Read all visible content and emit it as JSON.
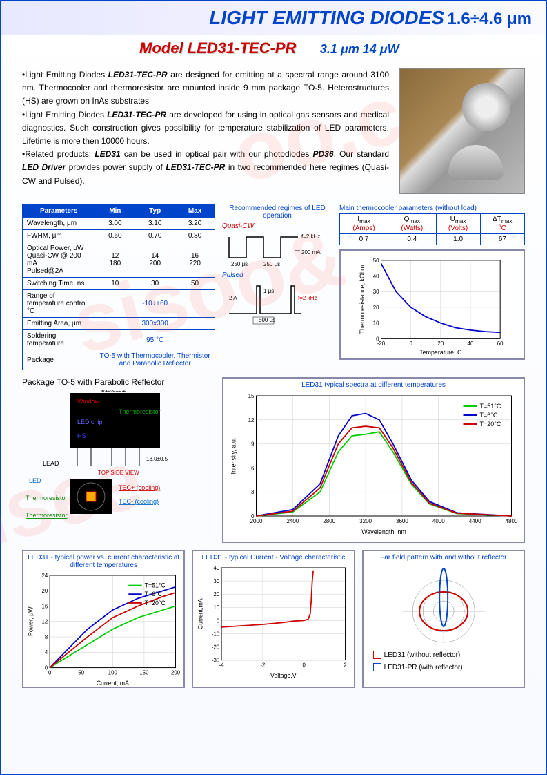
{
  "header": {
    "title": "LIGHT EMITTING DIODES",
    "spec": "1.6÷4.6 μm"
  },
  "subtitle": {
    "model": "Model  LED31-TEC-PR",
    "spec": "3.1 μm  14 μW"
  },
  "description": {
    "p1a": "•Light Emitting Diodes ",
    "p1b": "LED31-TEC-PR",
    "p1c": " are designed for emitting at a spectral range around 3100 nm. Thermocooler and thermoresistor are mounted inside 9 mm package TO-5. Heterostructures (HS) are grown on InAs substrates",
    "p2a": "•Light Emitting Diodes ",
    "p2b": "LED31-TEC-PR",
    "p2c": " are developed for using in optical gas sensors and medical diagnostics. Such construction gives possibility for temperature stabilization of LED parameters.  Lifetime is more then 10000 hours.",
    "p3a": "•Related products: ",
    "p3b": "LED31",
    "p3c": " can be used in optical pair with our photodiodes ",
    "p3d": "PD36",
    "p3e": ". Our standard ",
    "p3f": "LED  Driver",
    "p3g": "  provides power supply of ",
    "p3h": "LED31-TEC-PR",
    "p3i": " in two recommended here regimes (Quasi-CW and Pulsed)."
  },
  "param_table": {
    "headers": [
      "Parameters",
      "Min",
      "Typ",
      "Max"
    ],
    "rows": [
      {
        "label": "Wavelength, μm",
        "min": "3.00",
        "typ": "3.10",
        "max": "3.20"
      },
      {
        "label": "FWHM, μm",
        "min": "0.60",
        "typ": "0.70",
        "max": "0.80"
      },
      {
        "label": "Optical Power, μW\nQuasi-CW @ 200 mA\nPulsed@2A",
        "min": "12\n180",
        "typ": "14\n200",
        "max": "16\n220"
      },
      {
        "label": "Switching Time, ns",
        "min": "10",
        "typ": "30",
        "max": "50"
      },
      {
        "label": "Range of temperature control  °C",
        "full": "-10÷+60"
      },
      {
        "label": "Emitting Area, μm",
        "full": "300x300"
      },
      {
        "label": "Soldering temperature",
        "full": "95 °C"
      },
      {
        "label": "Package",
        "full": "TO-5 with Thermocooler, Thermistor and Parabolic Reflector"
      }
    ]
  },
  "timing": {
    "title": "Recommended regimes of LED operation",
    "quasi_label": "Quasi-CW",
    "pulsed_label": "Pulsed",
    "f_label": "f=2 kHz",
    "amp1": "200 mA",
    "t1": "250 μs",
    "t2": "250 μs",
    "amp2": "2 A",
    "t3": "500 μs",
    "t4": "1 μs",
    "f2": "f=2 kHz"
  },
  "tec": {
    "title": "Main thermocooler parameters (without load)",
    "headers": [
      {
        "sym": "I",
        "sub": "max",
        "unit": "(Amps)"
      },
      {
        "sym": "Q",
        "sub": "max",
        "unit": "(Watts)"
      },
      {
        "sym": "U",
        "sub": "max",
        "unit": "(Volts)"
      },
      {
        "sym": "ΔT",
        "sub": "max",
        "unit": "°C"
      }
    ],
    "values": [
      "0.7",
      "0.4",
      "1.0",
      "67"
    ]
  },
  "therm_chart": {
    "ylabel": "Thermoresistance, kOhm",
    "xlabel": "Temperature, C",
    "xlim": [
      -20,
      60
    ],
    "ylim": [
      0,
      50
    ],
    "xticks": [
      -20,
      0,
      20,
      40,
      60
    ],
    "yticks": [
      0,
      10,
      20,
      30,
      40,
      50
    ],
    "data": [
      [
        -20,
        48
      ],
      [
        -10,
        30
      ],
      [
        0,
        20
      ],
      [
        10,
        14
      ],
      [
        20,
        10
      ],
      [
        30,
        7
      ],
      [
        40,
        5.5
      ],
      [
        50,
        4.5
      ],
      [
        60,
        4
      ]
    ],
    "color": "#0000cc"
  },
  "pkg": {
    "title": "Package TO-5 with Parabolic Reflector",
    "labels": {
      "window": "Window",
      "thermoresistor": "Thermoresistor",
      "led_chip": "LED chip",
      "hs": "HS",
      "lead": "LEAD",
      "led": "LED",
      "tecp": "TEC+ (cooling)",
      "tecn": "TEC- (cooling)",
      "top": "TOP SIDE VIEW",
      "dim1": "ø15.8±0.2",
      "dim2": "13.0±0.5"
    }
  },
  "spectra": {
    "title": "LED31 typical spectra at different temperatures",
    "xlabel": "Wavelength, nm",
    "ylabel": "Intensity, a.u.",
    "xlim": [
      2000,
      4800
    ],
    "ylim": [
      0,
      15
    ],
    "xticks": [
      2000,
      2400,
      2800,
      3200,
      3600,
      4000,
      4400,
      4800
    ],
    "yticks": [
      0,
      3,
      6,
      9,
      12,
      15
    ],
    "series": [
      {
        "label": "T=51°C",
        "color": "#00cc00",
        "data": [
          [
            2000,
            0
          ],
          [
            2400,
            0.5
          ],
          [
            2700,
            3
          ],
          [
            2900,
            8
          ],
          [
            3050,
            10
          ],
          [
            3200,
            10.2
          ],
          [
            3350,
            10.5
          ],
          [
            3500,
            8
          ],
          [
            3700,
            4
          ],
          [
            3900,
            1.5
          ],
          [
            4200,
            0.3
          ],
          [
            4800,
            0
          ]
        ]
      },
      {
        "label": "T=6°C",
        "color": "#0000cc",
        "data": [
          [
            2000,
            0
          ],
          [
            2400,
            0.8
          ],
          [
            2700,
            4
          ],
          [
            2900,
            10
          ],
          [
            3050,
            12.5
          ],
          [
            3200,
            12.8
          ],
          [
            3350,
            12
          ],
          [
            3500,
            9
          ],
          [
            3700,
            4.5
          ],
          [
            3900,
            1.8
          ],
          [
            4200,
            0.4
          ],
          [
            4800,
            0
          ]
        ]
      },
      {
        "label": "T=20°C",
        "color": "#cc0000",
        "data": [
          [
            2000,
            0
          ],
          [
            2400,
            0.6
          ],
          [
            2700,
            3.5
          ],
          [
            2900,
            9
          ],
          [
            3050,
            11
          ],
          [
            3200,
            11.2
          ],
          [
            3350,
            11
          ],
          [
            3500,
            8.5
          ],
          [
            3700,
            4.2
          ],
          [
            3900,
            1.6
          ],
          [
            4200,
            0.35
          ],
          [
            4800,
            0
          ]
        ]
      }
    ]
  },
  "power_chart": {
    "title": "LED31 - typical power vs. current characteristic at different temperatures",
    "xlabel": "Current, mA",
    "ylabel": "Power, μW",
    "xlim": [
      0,
      200
    ],
    "ylim": [
      0,
      24
    ],
    "xticks": [
      0,
      50,
      100,
      150,
      200
    ],
    "yticks": [
      0,
      4,
      8,
      12,
      16,
      20,
      24
    ],
    "series": [
      {
        "label": "T=51°C",
        "color": "#00cc00",
        "data": [
          [
            0,
            0
          ],
          [
            30,
            3
          ],
          [
            60,
            6
          ],
          [
            100,
            10
          ],
          [
            140,
            13
          ],
          [
            180,
            15
          ],
          [
            200,
            16
          ]
        ]
      },
      {
        "label": "T=6°C",
        "color": "#0000cc",
        "data": [
          [
            0,
            0
          ],
          [
            30,
            5
          ],
          [
            60,
            10
          ],
          [
            100,
            15
          ],
          [
            140,
            18
          ],
          [
            180,
            20
          ],
          [
            200,
            21
          ]
        ]
      },
      {
        "label": "T=20°C",
        "color": "#cc0000",
        "data": [
          [
            0,
            0
          ],
          [
            30,
            4
          ],
          [
            60,
            8
          ],
          [
            100,
            13
          ],
          [
            140,
            16
          ],
          [
            180,
            18.5
          ],
          [
            200,
            19.5
          ]
        ]
      }
    ]
  },
  "iv_chart": {
    "title": "LED31 - typical Current - Voltage characteristic",
    "xlabel": "Voltage,V",
    "ylabel": "Current,mA",
    "xlim": [
      -4,
      2
    ],
    "ylim": [
      -30,
      40
    ],
    "xticks": [
      -4,
      -2,
      0,
      2
    ],
    "yticks": [
      -30,
      -20,
      -10,
      0,
      10,
      20,
      30,
      40
    ],
    "color": "#cc0000",
    "data": [
      [
        -4,
        -5
      ],
      [
        -3,
        -4
      ],
      [
        -2,
        -3
      ],
      [
        -1,
        -1.5
      ],
      [
        -0.5,
        -0.5
      ],
      [
        0,
        0
      ],
      [
        0.2,
        1
      ],
      [
        0.3,
        5
      ],
      [
        0.35,
        15
      ],
      [
        0.4,
        30
      ],
      [
        0.45,
        38
      ]
    ]
  },
  "farfield": {
    "title": "Far field pattern with and without reflector",
    "legend": [
      {
        "label": "LED31 (without reflector)",
        "color": "#cc0000"
      },
      {
        "label": "LED31-PR (with reflector)",
        "color": "#0044cc"
      }
    ]
  },
  "watermark": "siso"
}
